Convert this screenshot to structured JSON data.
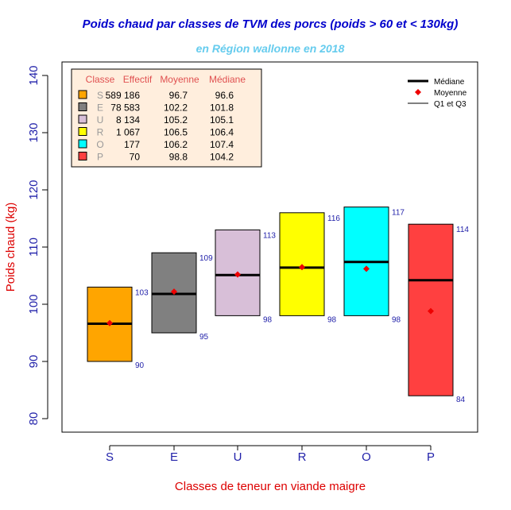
{
  "colors": {
    "title": "#0000CC",
    "subtitle": "#66CCEE",
    "axis_text": "#2222AA",
    "axis_label": "#DD0000",
    "table_header": "#E05050",
    "table_bg": "#FFEEDD",
    "mean_marker": "#EE0000",
    "quartile_label": "#2222AA"
  },
  "chart_data": {
    "type": "boxplot",
    "title": "Poids chaud par classes de TVM des porcs (poids > 60 et < 130kg)",
    "subtitle": "en Région wallonne en 2018",
    "xlabel": "Classes de teneur en viande maigre",
    "ylabel": "Poids chaud (kg)",
    "ylim": [
      78,
      143
    ],
    "yticks": [
      "80",
      "90",
      "100",
      "110",
      "120",
      "130",
      "140"
    ],
    "categories": [
      "S",
      "E",
      "U",
      "R",
      "O",
      "P"
    ],
    "q1": [
      90,
      95,
      98,
      98,
      98,
      84
    ],
    "q3": [
      103,
      109,
      113,
      116,
      117,
      114
    ],
    "median": [
      96.6,
      101.8,
      105.1,
      106.4,
      107.4,
      104.2
    ],
    "mean": [
      96.7,
      102.2,
      105.2,
      106.5,
      106.2,
      98.8
    ],
    "q1_labels": [
      "90",
      "95",
      "98",
      "98",
      "98",
      "84"
    ],
    "q3_labels": [
      "103",
      "109",
      "113",
      "116",
      "117",
      "114"
    ],
    "fill_colors": [
      "#FFA500",
      "#808080",
      "#D8BFD8",
      "#FFFF00",
      "#00FFFF",
      "#FF4040"
    ],
    "legend": {
      "position": "top-right",
      "items": [
        {
          "label": "Médiane",
          "kind": "thick-line"
        },
        {
          "label": "Moyenne",
          "kind": "diamond"
        },
        {
          "label": "Q1 et Q3",
          "kind": "thin-line"
        }
      ]
    },
    "table": {
      "position": "top-left",
      "headers": [
        "Classe",
        "Effectif",
        "Moyenne",
        "Médiane"
      ],
      "rows": [
        {
          "classe": "S",
          "effectif": "589 186",
          "moyenne": "96.7",
          "mediane": "96.6"
        },
        {
          "classe": "E",
          "effectif": "78 583",
          "moyenne": "102.2",
          "mediane": "101.8"
        },
        {
          "classe": "U",
          "effectif": "8 134",
          "moyenne": "105.2",
          "mediane": "105.1"
        },
        {
          "classe": "R",
          "effectif": "1 067",
          "moyenne": "106.5",
          "mediane": "106.4"
        },
        {
          "classe": "O",
          "effectif": "177",
          "moyenne": "106.2",
          "mediane": "107.4"
        },
        {
          "classe": "P",
          "effectif": "70",
          "moyenne": "98.8",
          "mediane": "104.2"
        }
      ]
    }
  }
}
